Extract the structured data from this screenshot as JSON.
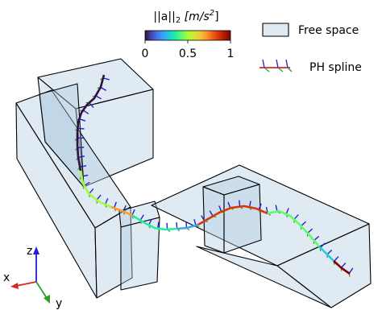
{
  "colorbar": {
    "label_prefix": "||a||",
    "label_sub": "2",
    "label_unit": " [m/s",
    "label_sup": "2",
    "label_close": "]",
    "ticks": [
      "0",
      "0.5",
      "1"
    ],
    "colors": [
      "#30123b",
      "#4145ab",
      "#4675ed",
      "#39a2fc",
      "#1bcfd4",
      "#24eca6",
      "#61fc6c",
      "#a4fc3b",
      "#d1e834",
      "#f3c63a",
      "#fe9b2d",
      "#f36315",
      "#d93806",
      "#b11901",
      "#7a0402"
    ]
  },
  "legend": {
    "free_space_label": "Free space",
    "spline_label": "PH spline",
    "free_space_color": "#b3cde3"
  },
  "axes_triad": {
    "x_label": "x",
    "y_label": "y",
    "z_label": "z",
    "x_color": "#d62728",
    "y_color": "#2ca02c",
    "z_color": "#1f1fd6"
  },
  "frame_colors": {
    "tangent": "#d62728",
    "normal": "#1f1fd6",
    "binormal": "#2ca02c"
  }
}
